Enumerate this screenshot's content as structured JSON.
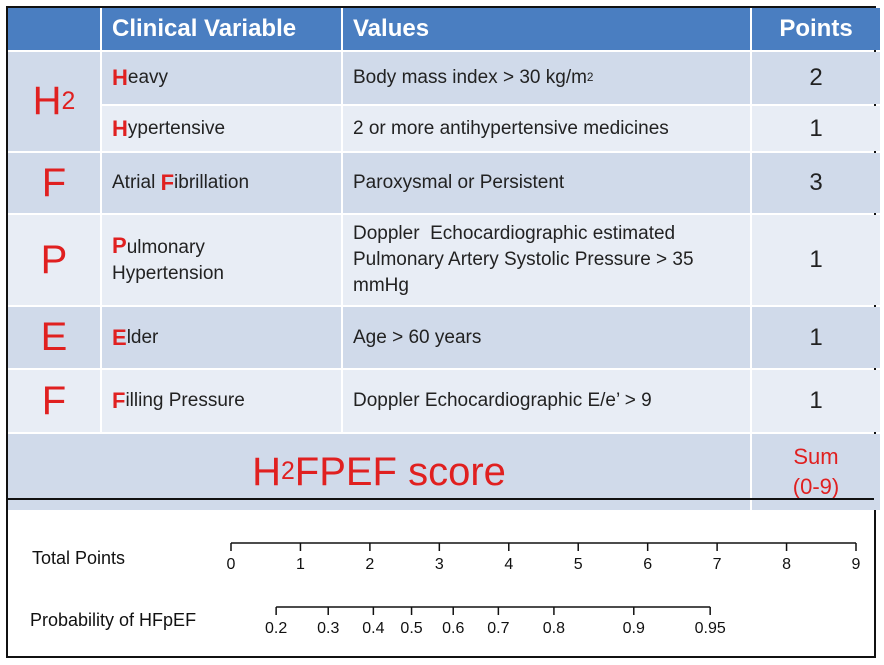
{
  "headers": {
    "clinical_variable": "Clinical Variable",
    "values": "Values",
    "points": "Points"
  },
  "rows": [
    {
      "letter": "H",
      "letter_sub": "2",
      "first": "H",
      "rest": "eavy",
      "value": "Body mass index > 30 kg/m",
      "value_sup": "2",
      "points": "2"
    },
    {
      "first": "H",
      "rest": "ypertensive",
      "value": "2 or more antihypertensive medicines",
      "points": "1"
    },
    {
      "letter": "F",
      "prefix": "Atrial ",
      "first": "F",
      "rest": "ibrillation",
      "value": "Paroxysmal or Persistent",
      "points": "3"
    },
    {
      "letter": "P",
      "first": "P",
      "rest": "ulmonary",
      "rest2": "Hypertension",
      "value": "Doppler  Echocardiographic estimated",
      "value2": "Pulmonary Artery Systolic Pressure > 35",
      "value3": "mmHg",
      "points": "1"
    },
    {
      "letter": "E",
      "first": "E",
      "rest": "lder",
      "value": "Age > 60 years",
      "points": "1"
    },
    {
      "letter": "F",
      "first": "F",
      "rest": "illing Pressure",
      "value": "Doppler Echocardiographic E/e’ > 9",
      "points": "1"
    }
  ],
  "score": {
    "pre": "H",
    "sub": "2",
    "post": "FPEF score",
    "sum_line1": "Sum",
    "sum_line2": "(0-9)"
  },
  "nomogram": {
    "total_points_label": "Total Points",
    "probability_label": "Probability of HFpEF",
    "points_scale": [
      "0",
      "1",
      "2",
      "3",
      "4",
      "5",
      "6",
      "7",
      "8",
      "9"
    ],
    "probability_scale": [
      "0.2",
      "0.3",
      "0.4",
      "0.5",
      "0.6",
      "0.7",
      "0.8",
      "0.9",
      "0.95"
    ],
    "probability_at_points": [
      0.65,
      1.4,
      2.05,
      2.6,
      3.2,
      3.85,
      4.65,
      5.8,
      6.9
    ]
  },
  "colors": {
    "header": "#4a7ec1",
    "accent_red": "#e02020",
    "row_dark": "#d0daea",
    "row_light": "#e8edf5"
  }
}
